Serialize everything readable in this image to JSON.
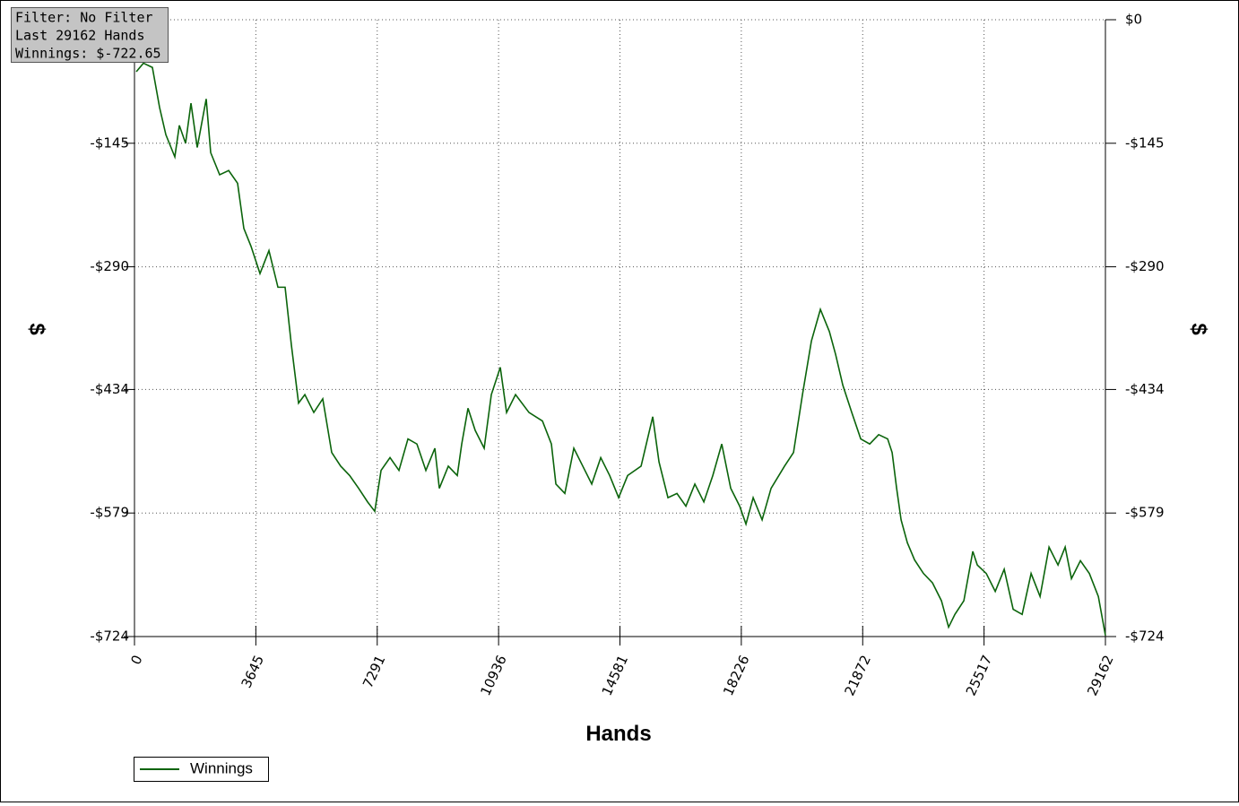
{
  "chart_data": {
    "type": "line",
    "info": [
      "Filter: No Filter",
      "Last  29162 Hands",
      "Winnings: $-722.65"
    ],
    "x_label": "Hands",
    "y_label": "$",
    "y2_label": "$",
    "legend": "bottom-left",
    "grid": true,
    "xlim": [
      0,
      29162
    ],
    "xticks": [
      0,
      3645,
      7291,
      10936,
      14581,
      18226,
      21872,
      25517,
      29162
    ],
    "ylim": [
      -724,
      0
    ],
    "yticks": [
      {
        "value": 0,
        "label": "$0"
      },
      {
        "value": -145,
        "label": "-$145"
      },
      {
        "value": -290,
        "label": "-$290"
      },
      {
        "value": -434,
        "label": "-$434"
      },
      {
        "value": -579,
        "label": "-$579"
      },
      {
        "value": -724,
        "label": "-$724"
      }
    ],
    "x": [
      54,
      269,
      538,
      754,
      943,
      1212,
      1347,
      1535,
      1697,
      1885,
      2154,
      2289,
      2558,
      2828,
      3097,
      3285,
      3501,
      3770,
      4039,
      4309,
      4524,
      4713,
      4928,
      5117,
      5386,
      5655,
      5924,
      6194,
      6463,
      6733,
      7002,
      7217,
      7406,
      7675,
      7944,
      8214,
      8483,
      8752,
      9022,
      9156,
      9426,
      9695,
      9829,
      10018,
      10233,
      10503,
      10718,
      10987,
      11176,
      11445,
      11849,
      12253,
      12522,
      12657,
      12926,
      13196,
      13465,
      13734,
      14004,
      14273,
      14542,
      14812,
      15216,
      15566,
      15754,
      16023,
      16293,
      16562,
      16831,
      17101,
      17370,
      17639,
      17908,
      18178,
      18366,
      18582,
      18851,
      19120,
      19524,
      19794,
      20063,
      20332,
      20601,
      20871,
      21059,
      21275,
      21544,
      21813,
      22083,
      22352,
      22621,
      22756,
      22891,
      23025,
      23214,
      23429,
      23698,
      23968,
      24237,
      24452,
      24641,
      24910,
      25179,
      25314,
      25584,
      25853,
      26122,
      26391,
      26661,
      26930,
      27199,
      27469,
      27738,
      27953,
      28142,
      28411,
      28680,
      28950,
      29162
    ],
    "series": [
      {
        "name": "Winnings",
        "color": "#0b640b",
        "values": [
          -61,
          -51,
          -56,
          -103,
          -135,
          -161,
          -124,
          -145,
          -98,
          -150,
          -93,
          -156,
          -182,
          -177,
          -192,
          -245,
          -266,
          -298,
          -271,
          -314,
          -314,
          -382,
          -450,
          -440,
          -461,
          -445,
          -508,
          -524,
          -535,
          -550,
          -566,
          -577,
          -529,
          -514,
          -529,
          -492,
          -498,
          -529,
          -503,
          -550,
          -524,
          -535,
          -498,
          -456,
          -482,
          -503,
          -440,
          -408,
          -461,
          -440,
          -461,
          -471,
          -498,
          -545,
          -556,
          -503,
          -524,
          -545,
          -514,
          -535,
          -561,
          -535,
          -524,
          -466,
          -519,
          -561,
          -556,
          -571,
          -545,
          -566,
          -535,
          -498,
          -550,
          -571,
          -592,
          -561,
          -587,
          -550,
          -524,
          -508,
          -440,
          -377,
          -340,
          -366,
          -393,
          -429,
          -461,
          -492,
          -498,
          -487,
          -492,
          -508,
          -550,
          -587,
          -614,
          -634,
          -650,
          -661,
          -682,
          -713,
          -698,
          -682,
          -624,
          -640,
          -650,
          -671,
          -645,
          -692,
          -698,
          -650,
          -677,
          -619,
          -640,
          -619,
          -656,
          -635,
          -650,
          -677,
          -722.65
        ]
      }
    ]
  }
}
